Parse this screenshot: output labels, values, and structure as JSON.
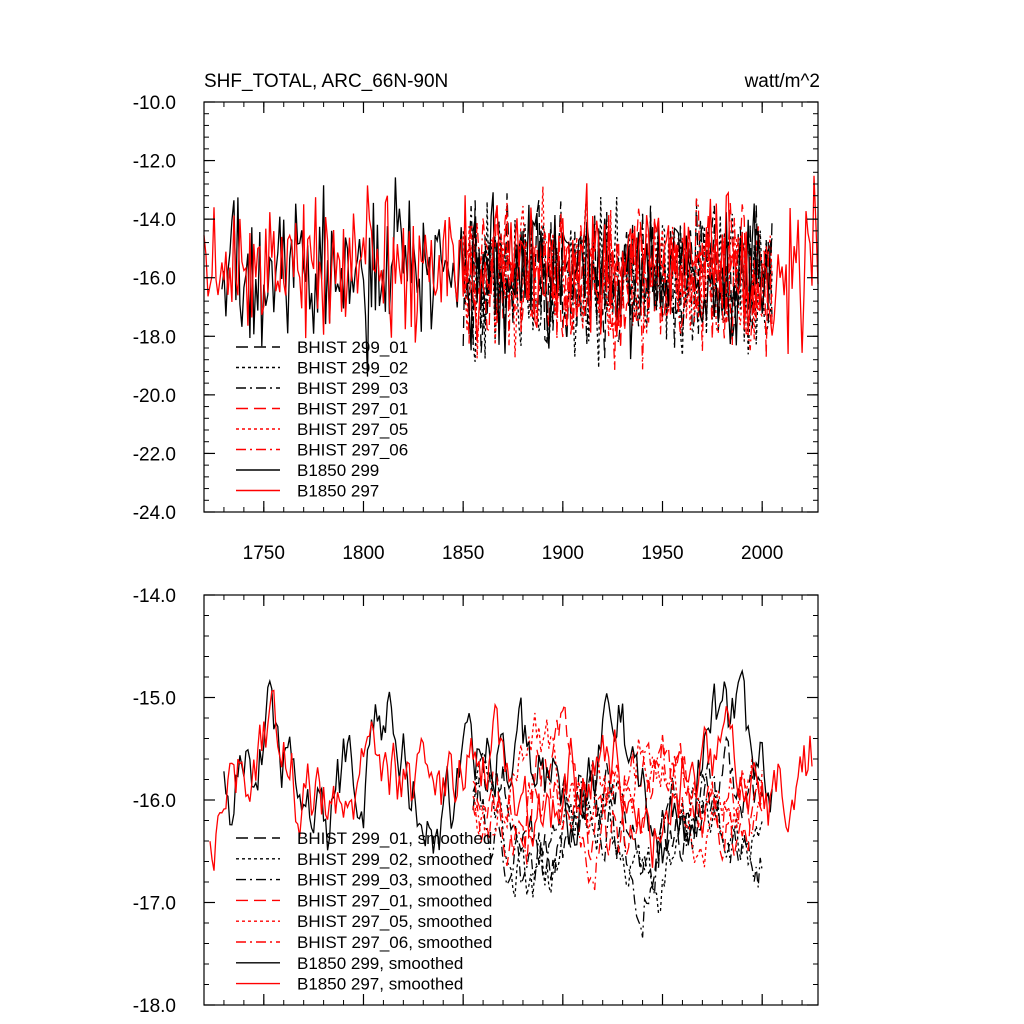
{
  "chart_data": [
    {
      "type": "line",
      "title": "SHF_TOTAL, ARC_66N-90N",
      "units": "watt/m^2",
      "xlim": [
        1720,
        2028
      ],
      "ylim": [
        -24.0,
        -10.0
      ],
      "xticks": [
        1750,
        1800,
        1850,
        1900,
        1950,
        2000
      ],
      "yticks": [
        -24.0,
        -22.0,
        -20.0,
        -18.0,
        -16.0,
        -14.0,
        -12.0,
        -10.0
      ],
      "ytick_labels": [
        "-24.0",
        "-22.0",
        "-20.0",
        "-18.0",
        "-16.0",
        "-14.0",
        "-12.0",
        "-10.0"
      ],
      "series": [
        {
          "name": "BHIST 299_01",
          "color": "#000000",
          "dash": "long-dash",
          "x_range": [
            1850,
            2005
          ],
          "mean": -16.0,
          "amplitude": 1.5,
          "phase": 1.1
        },
        {
          "name": "BHIST 299_02",
          "color": "#000000",
          "dash": "dotted",
          "x_range": [
            1850,
            2005
          ],
          "mean": -16.1,
          "amplitude": 1.6,
          "phase": 2.3
        },
        {
          "name": "BHIST 299_03",
          "color": "#000000",
          "dash": "dash-dot",
          "x_range": [
            1850,
            2005
          ],
          "mean": -16.0,
          "amplitude": 1.5,
          "phase": 3.7
        },
        {
          "name": "BHIST 297_01",
          "color": "#ff0000",
          "dash": "long-dash",
          "x_range": [
            1850,
            2005
          ],
          "mean": -15.9,
          "amplitude": 1.5,
          "phase": 4.9
        },
        {
          "name": "BHIST 297_05",
          "color": "#ff0000",
          "dash": "dotted",
          "x_range": [
            1850,
            2005
          ],
          "mean": -15.9,
          "amplitude": 1.5,
          "phase": 5.6
        },
        {
          "name": "BHIST 297_06",
          "color": "#ff0000",
          "dash": "dash-dot",
          "x_range": [
            1850,
            2005
          ],
          "mean": -15.9,
          "amplitude": 1.5,
          "phase": 6.8
        },
        {
          "name": "B1850 299",
          "color": "#000000",
          "dash": "solid",
          "x_range": [
            1729,
            2005
          ],
          "mean": -15.9,
          "amplitude": 1.6,
          "phase": 7.4
        },
        {
          "name": "B1850 297",
          "color": "#ff0000",
          "dash": "solid",
          "x_range": [
            1720,
            2028
          ],
          "mean": -15.6,
          "amplitude": 1.5,
          "phase": 8.9
        }
      ]
    },
    {
      "type": "line",
      "title": "",
      "xlim": [
        1720,
        2028
      ],
      "ylim": [
        -18.0,
        -14.0
      ],
      "xticks": [
        1750,
        1800,
        1850,
        1900,
        1950,
        2000
      ],
      "yticks": [
        -18.0,
        -17.0,
        -16.0,
        -15.0,
        -14.0
      ],
      "ytick_labels": [
        "-18.0",
        "-17.0",
        "-16.0",
        "-15.0",
        "-14.0"
      ],
      "series": [
        {
          "name": "BHIST 299_01, smoothed",
          "color": "#000000",
          "dash": "long-dash",
          "x_range": [
            1855,
            2000
          ],
          "mean": -16.2,
          "amplitude": 0.45,
          "phase": 1.3
        },
        {
          "name": "BHIST 299_02, smoothed",
          "color": "#000000",
          "dash": "dotted",
          "x_range": [
            1855,
            2000
          ],
          "mean": -16.4,
          "amplitude": 0.45,
          "phase": 2.1
        },
        {
          "name": "BHIST 299_03, smoothed",
          "color": "#000000",
          "dash": "dash-dot",
          "x_range": [
            1855,
            2000
          ],
          "mean": -16.3,
          "amplitude": 0.45,
          "phase": 3.2
        },
        {
          "name": "BHIST 297_01, smoothed",
          "color": "#ff0000",
          "dash": "long-dash",
          "x_range": [
            1855,
            2000
          ],
          "mean": -16.0,
          "amplitude": 0.55,
          "phase": 4.4
        },
        {
          "name": "BHIST 297_05, smoothed",
          "color": "#ff0000",
          "dash": "dotted",
          "x_range": [
            1855,
            2000
          ],
          "mean": -15.9,
          "amplitude": 0.45,
          "phase": 5.5
        },
        {
          "name": "BHIST 297_06, smoothed",
          "color": "#ff0000",
          "dash": "dash-dot",
          "x_range": [
            1855,
            2000
          ],
          "mean": -16.0,
          "amplitude": 0.45,
          "phase": 6.2
        },
        {
          "name": "B1850 299, smoothed",
          "color": "#000000",
          "dash": "solid",
          "x_range": [
            1730,
            2005
          ],
          "mean": -15.7,
          "amplitude": 0.6,
          "phase": 7.7
        },
        {
          "name": "B1850 297, smoothed",
          "color": "#ff0000",
          "dash": "solid",
          "x_range": [
            1723,
            2025
          ],
          "mean": -15.8,
          "amplitude": 0.55,
          "phase": 8.3
        }
      ]
    }
  ]
}
